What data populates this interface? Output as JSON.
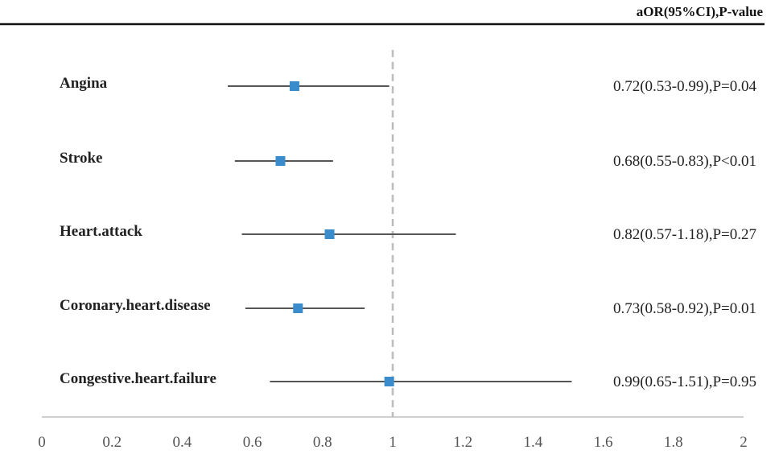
{
  "header": "aOR(95%CI),P-value",
  "chart_data": {
    "type": "forest",
    "xlim": [
      0,
      2
    ],
    "ticks": [
      "0",
      "0.2",
      "0.4",
      "0.6",
      "0.8",
      "1",
      "1.2",
      "1.4",
      "1.6",
      "1.8",
      "2"
    ],
    "reference_line": 1,
    "colors": {
      "marker": "#3a8ccc",
      "ci": "#555555",
      "ref": "#bbbbbb",
      "axis": "#bfbfbf"
    },
    "rows": [
      {
        "label": "Angina",
        "or": 0.72,
        "lo": 0.53,
        "hi": 0.99,
        "text": "0.72(0.53-0.99),P=0.04"
      },
      {
        "label": "Stroke",
        "or": 0.68,
        "lo": 0.55,
        "hi": 0.83,
        "text": "0.68(0.55-0.83),P<0.01"
      },
      {
        "label": "Heart.attack",
        "or": 0.82,
        "lo": 0.57,
        "hi": 1.18,
        "text": "0.82(0.57-1.18),P=0.27"
      },
      {
        "label": "Coronary.heart.disease",
        "or": 0.73,
        "lo": 0.58,
        "hi": 0.92,
        "text": "0.73(0.58-0.92),P=0.01"
      },
      {
        "label": "Congestive.heart.failure",
        "or": 0.99,
        "lo": 0.65,
        "hi": 1.51,
        "text": "0.99(0.65-1.51),P=0.95"
      }
    ]
  }
}
